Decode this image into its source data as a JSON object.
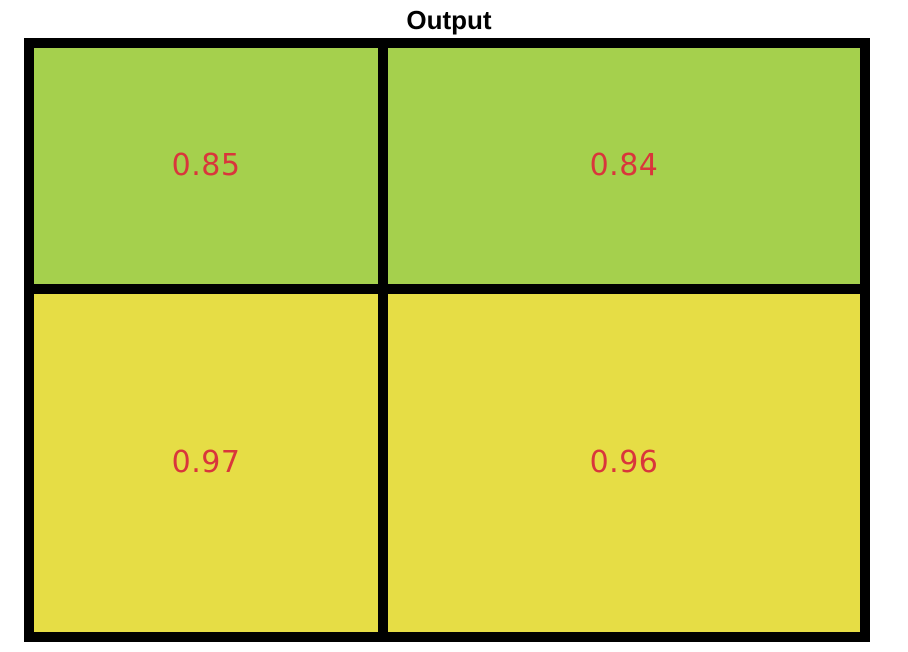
{
  "chart_data": {
    "type": "heatmap",
    "title": "Output",
    "rows": 2,
    "cols": 2,
    "values": [
      [
        0.85,
        0.84
      ],
      [
        0.97,
        0.96
      ]
    ],
    "labels": [
      [
        "0.85",
        "0.84"
      ],
      [
        "0.97",
        "0.96"
      ]
    ],
    "cell_colors": [
      [
        "#a5d04d",
        "#a5d04d"
      ],
      [
        "#e6dd45",
        "#e6dd45"
      ]
    ],
    "label_color": "#d9363b",
    "grid_color": "#000000"
  }
}
